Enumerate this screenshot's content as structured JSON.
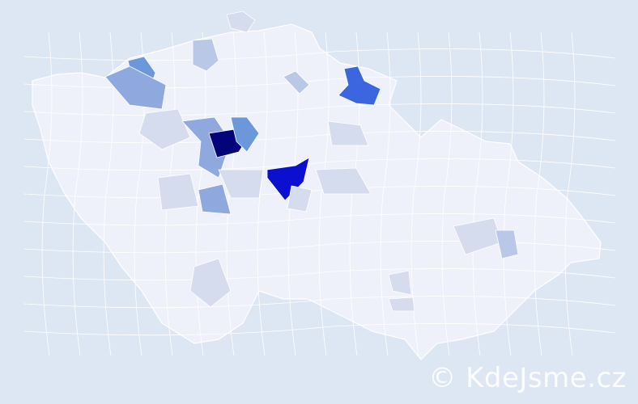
{
  "watermark": "© KdeJsme.cz",
  "colors": {
    "background": "#dde6f3",
    "base_region": "#eef1f9",
    "region_border": "#ffffff",
    "scale": [
      "#d5dced",
      "#b9c8e6",
      "#8fa8de",
      "#6b98db",
      "#3b66e0",
      "#0b0fd0",
      "#04047a"
    ]
  }
}
